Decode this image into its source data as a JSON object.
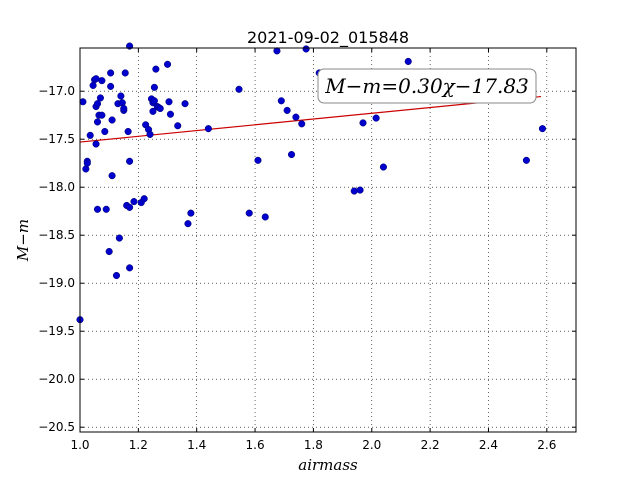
{
  "chart_data": {
    "type": "scatter",
    "title": "2021-09-02_015848",
    "xlabel": "airmass",
    "ylabel": "M−m",
    "xlim": [
      1.0,
      2.7
    ],
    "ylim": [
      -20.55,
      -16.55
    ],
    "xticks": [
      1.0,
      1.2,
      1.4,
      1.6,
      1.8,
      2.0,
      2.2,
      2.4,
      2.6
    ],
    "xtick_labels": [
      "1.0",
      "1.2",
      "1.4",
      "1.6",
      "1.8",
      "2.0",
      "2.2",
      "2.4",
      "2.6"
    ],
    "yticks": [
      -17.0,
      -17.5,
      -18.0,
      -18.5,
      -19.0,
      -19.5,
      -20.0,
      -20.5
    ],
    "ytick_labels": [
      "−17.0",
      "−17.5",
      "−18.0",
      "−18.5",
      "−19.0",
      "−19.5",
      "−20.0",
      "−20.5"
    ],
    "grid": true,
    "point_color": "#0000cc",
    "fit_color": "#cc0000",
    "fit": {
      "slope": 0.3,
      "intercept": -17.83,
      "x_range": [
        1.0,
        2.58
      ]
    },
    "annotation": "M−m=0.30χ−17.83",
    "points": [
      [
        1.0,
        -19.38
      ],
      [
        1.01,
        -17.11
      ],
      [
        1.02,
        -17.81
      ],
      [
        1.025,
        -17.73
      ],
      [
        1.025,
        -17.75
      ],
      [
        1.035,
        -17.46
      ],
      [
        1.045,
        -16.94
      ],
      [
        1.05,
        -16.88
      ],
      [
        1.055,
        -16.87
      ],
      [
        1.055,
        -17.16
      ],
      [
        1.055,
        -17.55
      ],
      [
        1.06,
        -17.13
      ],
      [
        1.06,
        -17.32
      ],
      [
        1.06,
        -18.23
      ],
      [
        1.065,
        -17.25
      ],
      [
        1.07,
        -17.07
      ],
      [
        1.075,
        -16.89
      ],
      [
        1.075,
        -17.25
      ],
      [
        1.085,
        -17.42
      ],
      [
        1.09,
        -18.23
      ],
      [
        1.1,
        -18.67
      ],
      [
        1.105,
        -16.95
      ],
      [
        1.105,
        -16.81
      ],
      [
        1.11,
        -17.3
      ],
      [
        1.11,
        -17.88
      ],
      [
        1.125,
        -18.92
      ],
      [
        1.13,
        -17.13
      ],
      [
        1.135,
        -18.53
      ],
      [
        1.14,
        -17.05
      ],
      [
        1.145,
        -17.12
      ],
      [
        1.15,
        -17.2
      ],
      [
        1.15,
        -17.18
      ],
      [
        1.155,
        -16.81
      ],
      [
        1.16,
        -18.19
      ],
      [
        1.165,
        -17.42
      ],
      [
        1.17,
        -17.73
      ],
      [
        1.17,
        -18.21
      ],
      [
        1.17,
        -18.84
      ],
      [
        1.17,
        -16.53
      ],
      [
        1.185,
        -18.15
      ],
      [
        1.21,
        -18.16
      ],
      [
        1.22,
        -18.12
      ],
      [
        1.225,
        -17.35
      ],
      [
        1.235,
        -17.4
      ],
      [
        1.24,
        -17.45
      ],
      [
        1.245,
        -17.08
      ],
      [
        1.25,
        -17.12
      ],
      [
        1.25,
        -17.21
      ],
      [
        1.255,
        -16.96
      ],
      [
        1.255,
        -17.1
      ],
      [
        1.26,
        -16.77
      ],
      [
        1.265,
        -17.16
      ],
      [
        1.27,
        -17.17
      ],
      [
        1.275,
        -17.18
      ],
      [
        1.3,
        -16.72
      ],
      [
        1.305,
        -17.11
      ],
      [
        1.31,
        -17.24
      ],
      [
        1.335,
        -17.36
      ],
      [
        1.36,
        -17.13
      ],
      [
        1.37,
        -18.38
      ],
      [
        1.38,
        -18.27
      ],
      [
        1.44,
        -17.39
      ],
      [
        1.545,
        -16.98
      ],
      [
        1.58,
        -18.27
      ],
      [
        1.61,
        -17.72
      ],
      [
        1.635,
        -18.31
      ],
      [
        1.675,
        -16.58
      ],
      [
        1.69,
        -17.1
      ],
      [
        1.71,
        -17.2
      ],
      [
        1.725,
        -17.66
      ],
      [
        1.74,
        -17.27
      ],
      [
        1.76,
        -17.34
      ],
      [
        1.775,
        -16.56
      ],
      [
        1.82,
        -16.81
      ],
      [
        1.94,
        -18.04
      ],
      [
        1.96,
        -18.03
      ],
      [
        1.97,
        -17.33
      ],
      [
        2.015,
        -17.28
      ],
      [
        2.04,
        -17.79
      ],
      [
        2.125,
        -16.69
      ],
      [
        2.53,
        -17.72
      ],
      [
        2.585,
        -17.39
      ]
    ]
  }
}
